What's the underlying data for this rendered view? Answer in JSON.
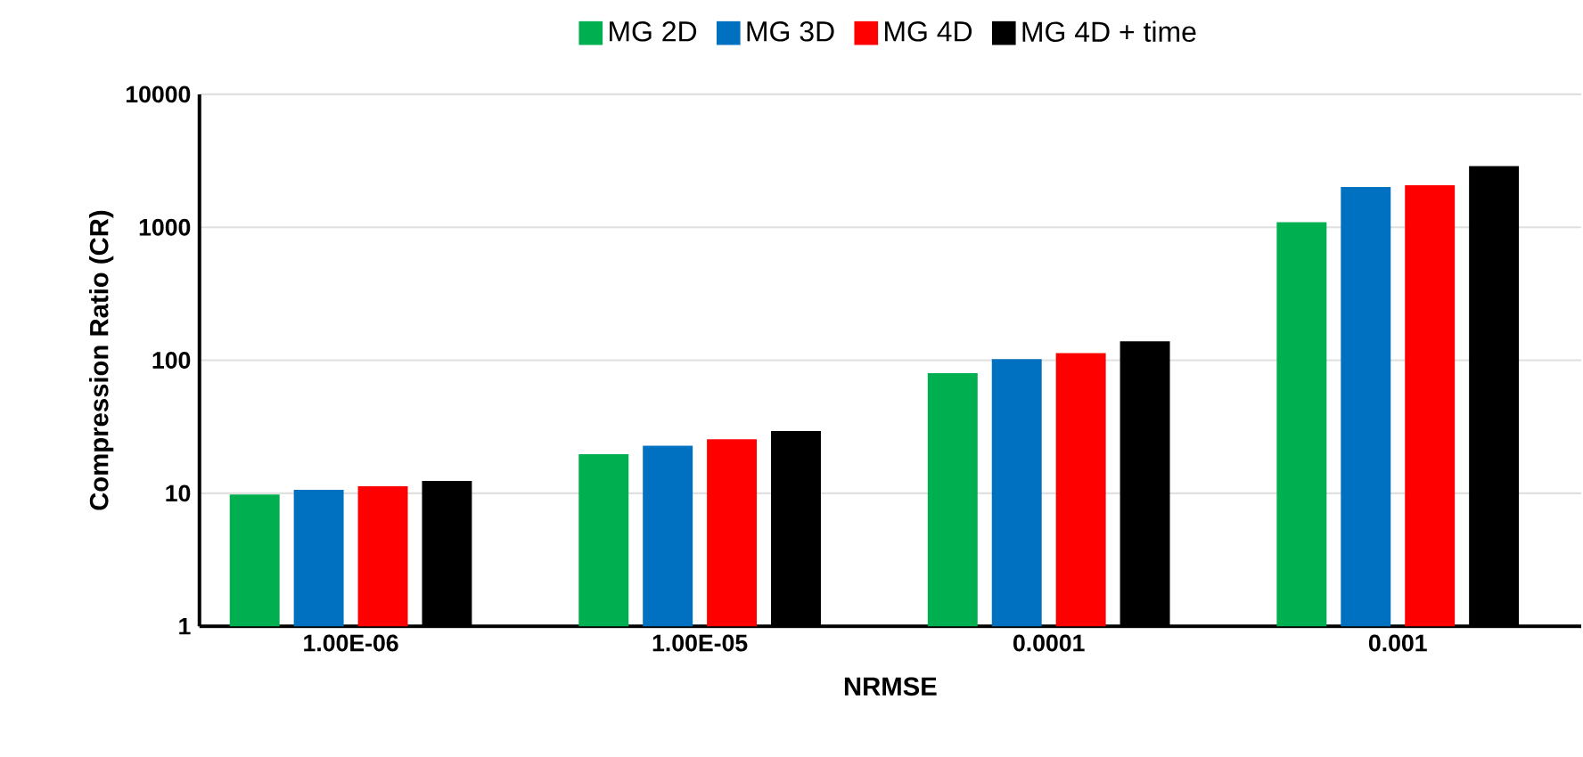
{
  "chart_data": {
    "type": "bar",
    "xlabel": "NRMSE",
    "ylabel": "Compression Ratio (CR)",
    "categories": [
      "1.00E-06",
      "1.00E-05",
      "0.0001",
      "0.001"
    ],
    "series": [
      {
        "name": "MG 2D",
        "color": "#00b050",
        "values": [
          9.8,
          19.7,
          80,
          1090
        ]
      },
      {
        "name": "MG 3D",
        "color": "#0070c0",
        "values": [
          10.6,
          22.8,
          102,
          2010
        ]
      },
      {
        "name": "MG 4D",
        "color": "#ff0000",
        "values": [
          11.3,
          25.5,
          113,
          2070
        ]
      },
      {
        "name": "MG 4D + time",
        "color": "#000000",
        "values": [
          12.4,
          29.4,
          139,
          2880
        ]
      }
    ],
    "log": "y",
    "ylim": [
      1,
      10000
    ],
    "yticks": [
      1,
      10,
      100,
      1000,
      10000
    ],
    "grid": "y",
    "legend": "top"
  }
}
